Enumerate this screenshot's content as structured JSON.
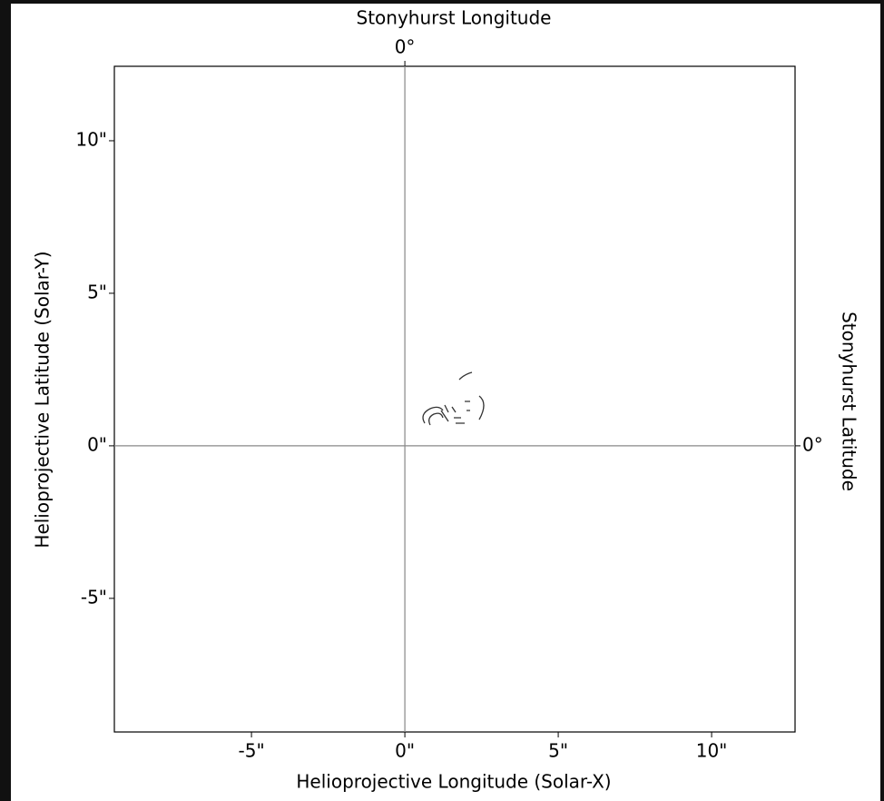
{
  "chart_data": {
    "type": "contour",
    "xlabel": "Helioprojective Longitude (Solar-X)",
    "ylabel": "Helioprojective Latitude (Solar-Y)",
    "top_label": "Stonyhurst Longitude",
    "right_label": "Stonyhurst Latitude",
    "xlim": [
      -9.47,
      12.72
    ],
    "ylim": [
      -9.38,
      12.44
    ],
    "xticks": [
      {
        "value": -5,
        "label": "-5\""
      },
      {
        "value": 0,
        "label": "0\""
      },
      {
        "value": 5,
        "label": "5\""
      },
      {
        "value": 10,
        "label": "10\""
      }
    ],
    "yticks": [
      {
        "value": -5,
        "label": "-5\""
      },
      {
        "value": 0,
        "label": "0\""
      },
      {
        "value": 5,
        "label": "5\""
      },
      {
        "value": 10,
        "label": "10\""
      }
    ],
    "top_xticks": [
      {
        "value": 0,
        "label": "0°"
      }
    ],
    "right_yticks": [
      {
        "value": 0,
        "label": "0°"
      }
    ],
    "grid": true
  }
}
